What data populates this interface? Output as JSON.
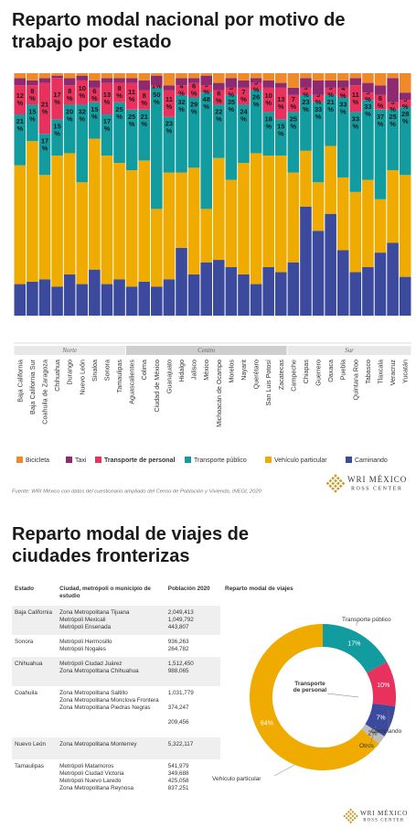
{
  "chart_data": [
    {
      "type": "bar",
      "stacked": true,
      "title": "Reparto modal nacional por motivo de trabajo por estado",
      "groups": [
        {
          "name": "Norte",
          "color": "#e8e8e8",
          "categories": [
            "Baja California",
            "Baja California Sur",
            "Coahuila de Zaragoza",
            "Chihuahua",
            "Durango",
            "Nuevo León",
            "Sinaloa",
            "Sonora",
            "Tamaulipas"
          ]
        },
        {
          "name": "Centro",
          "color": "#cfcfcf",
          "categories": [
            "Aguascalientes",
            "Colima",
            "Ciudad de México",
            "Guanajuato",
            "Hidalgo",
            "Jalisco",
            "México",
            "Michoacán de Ocampo",
            "Morelos",
            "Nayarit",
            "Querétaro",
            "San Luis Potosí",
            "Zacatecas"
          ]
        },
        {
          "name": "Sur",
          "color": "#e8e8e8",
          "categories": [
            "Campeche",
            "Chiapas",
            "Guerrero",
            "Oaxaca",
            "Puebla",
            "Quintana Roo",
            "Tabasco",
            "Tlaxcala",
            "Veracruz",
            "Yucatán"
          ]
        }
      ],
      "series": [
        {
          "name": "Caminando",
          "color": "#3c4a9e",
          "values": [
            13,
            14,
            15,
            12,
            17,
            13,
            19,
            13,
            15,
            12,
            14,
            12,
            15,
            28,
            17,
            22,
            23,
            20,
            17,
            13,
            20,
            18,
            22,
            45,
            35,
            42,
            27,
            18,
            20,
            26,
            30,
            16
          ]
        },
        {
          "name": "Vehículo particular",
          "color": "#f0ab00",
          "values": [
            49,
            58,
            43,
            54,
            50,
            42,
            54,
            53,
            48,
            48,
            50,
            32,
            44,
            31,
            44,
            22,
            42,
            36,
            46,
            54,
            46,
            48,
            37,
            23,
            20,
            28,
            30,
            33,
            36,
            22,
            30,
            42
          ]
        },
        {
          "name": "Transporte público",
          "color": "#139c9f",
          "values": [
            21,
            15,
            17,
            15,
            20,
            32,
            15,
            17,
            25,
            25,
            21,
            50,
            23,
            32,
            29,
            48,
            22,
            35,
            24,
            26,
            18,
            15,
            25,
            23,
            33,
            21,
            33,
            33,
            33,
            37,
            25,
            28
          ],
          "value_labels": [
            "21 %",
            "15 %",
            "17 %",
            "15 %",
            "20 %",
            "32 %",
            "15 %",
            "17 %",
            "25 %",
            "25 %",
            "21 %",
            "50 %",
            "23 %",
            "32 %",
            "29 %",
            "48 %",
            "22 %",
            "35 %",
            "24 %",
            "26 %",
            "18 %",
            "15 %",
            "25 %",
            "23 %",
            "33 %",
            "21 %",
            "33 %",
            "33 %",
            "33 %",
            "37 %",
            "25 %",
            "28 %"
          ]
        },
        {
          "name": "Transporte de personal",
          "color": "#e8315c",
          "values": [
            12,
            8,
            21,
            17,
            8,
            10,
            6,
            13,
            8,
            11,
            8,
            1,
            11,
            4,
            6,
            3,
            6,
            3,
            7,
            3,
            10,
            13,
            7,
            3,
            3,
            3,
            4,
            11,
            3,
            6,
            3,
            3
          ],
          "value_labels": [
            "12 %",
            "8 %",
            "21 %",
            "17 %",
            "8 %",
            "10 %",
            "6 %",
            "13 %",
            "8 %",
            "11 %",
            "8 %",
            "1%",
            "11 %",
            "4 %",
            "6 %",
            "3 %",
            "6 %",
            "3 %",
            "7 %",
            "3 %",
            "10 %",
            "13 %",
            "7 %",
            "3 %",
            "3 %",
            "3 %",
            "4 %",
            "11 %",
            "3 %",
            "6 %",
            "3 %",
            "3 %"
          ]
        },
        {
          "name": "Taxi",
          "color": "#8e2a6f",
          "values": [
            3,
            2,
            2,
            1,
            3,
            2,
            3,
            2,
            2,
            2,
            4,
            4,
            2,
            3,
            2,
            4,
            3,
            4,
            3,
            2,
            3,
            2,
            3,
            4,
            6,
            3,
            3,
            3,
            4,
            4,
            10,
            3
          ]
        },
        {
          "name": "Bicicleta",
          "color": "#ee8a2a",
          "values": [
            2,
            3,
            2,
            1,
            2,
            1,
            3,
            2,
            2,
            2,
            3,
            1,
            5,
            2,
            2,
            1,
            4,
            2,
            3,
            2,
            3,
            4,
            6,
            2,
            3,
            3,
            3,
            2,
            4,
            5,
            2,
            8
          ]
        }
      ],
      "ylim": [
        0,
        100
      ],
      "legend": "bottom",
      "source": "Fuente: WRI México con datos del cuestionario ampliado del Censo de Población y Vivienda, INEGI, 2020"
    },
    {
      "type": "pie",
      "donut": true,
      "title": "Reparto modal de viajes",
      "categories": [
        "Transporte público",
        "Transporte de personal",
        "Caminando",
        "Otros",
        "Vehículo particular"
      ],
      "values": [
        17,
        10,
        7,
        2,
        64
      ],
      "value_labels": [
        "17%",
        "10%",
        "7%",
        "2%",
        "64%"
      ],
      "colors": [
        "#139c9f",
        "#e8315c",
        "#3c4a9e",
        "#bdbdbd",
        "#f0ab00"
      ]
    }
  ],
  "section_title": "Reparto modal de viajes de ciudades fronterizas",
  "table": {
    "columns": [
      "Estado",
      "Ciudad, metrópoli o municipio de estudio",
      "Población 2020"
    ],
    "rows": [
      {
        "state": "Baja California",
        "cities": [
          [
            "Zona Metropolitana Tijuana",
            "2,049,413"
          ],
          [
            "Metrópoli Mexicali",
            "1,049,792"
          ],
          [
            "Metrópoli Ensenada",
            "443,807"
          ]
        ]
      },
      {
        "state": "Sonora",
        "cities": [
          [
            "Metrópoli Hermosillo",
            "936,263"
          ],
          [
            "Metrópoli Nogales",
            "264,782"
          ]
        ]
      },
      {
        "state": "Chihuahua",
        "cities": [
          [
            "Metrópoli Ciudad Juárez",
            "1,512,450"
          ],
          [
            "Zona Metropolitana Chihuahua",
            "988,065"
          ]
        ]
      },
      {
        "state": "Coahuila",
        "cities": [
          [
            "Zona Metropolitana Saltillo",
            "1,031,779"
          ],
          [
            "Zona Metropolitana Monclova Frontera",
            "374,247"
          ],
          [
            "Zona Metropolitana Piedras Negras",
            "209,456"
          ]
        ]
      },
      {
        "state": "Nuevo León",
        "cities": [
          [
            "Zona Metropolitana Monterrey",
            "5,322,117"
          ]
        ]
      },
      {
        "state": "Tamaulipas",
        "cities": [
          [
            "Metrópoli Matamoros",
            "541,979"
          ],
          [
            "Metrópoli Ciudad Victoria",
            "349,688"
          ],
          [
            "Metrópoli Nuevo Laredo",
            "425,058"
          ],
          [
            "Zona Metropolitana Reynosa",
            "837,251"
          ]
        ]
      }
    ]
  },
  "logo": {
    "name": "WRI MÉXICO",
    "subtitle": "ROSS CENTER"
  }
}
